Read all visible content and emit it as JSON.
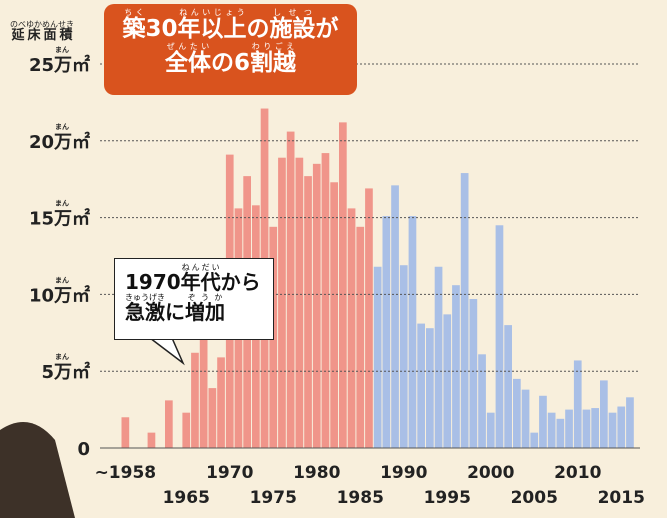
{
  "chart_data": {
    "type": "bar",
    "title_lines": [
      [
        {
          "text": "築",
          "ruby": "ちく"
        },
        {
          "text": "30"
        },
        {
          "text": "年",
          "ruby": "ねん"
        },
        {
          "text": "以上",
          "ruby": "いじょう"
        },
        {
          "text": "の"
        },
        {
          "text": "施設",
          "ruby": "しせつ"
        },
        {
          "text": "が"
        }
      ],
      [
        {
          "text": "全体",
          "ruby": "ぜんたい"
        },
        {
          "text": "の6"
        },
        {
          "text": "割越",
          "ruby": "わりごえ"
        }
      ]
    ],
    "y_label": {
      "text": "延床面積",
      "ruby": "のべゆかめんせき"
    },
    "annotation_lines": [
      [
        {
          "text": "1970"
        },
        {
          "text": "年代",
          "ruby": "ねんだい"
        },
        {
          "text": "から"
        }
      ],
      [
        {
          "text": "急激",
          "ruby": "きゅうげき"
        },
        {
          "text": "に"
        },
        {
          "text": "増加",
          "ruby": "ぞうか"
        }
      ]
    ],
    "categories": [
      "~1958",
      null,
      null,
      null,
      null,
      null,
      null,
      "1965",
      null,
      null,
      null,
      null,
      "1970",
      null,
      null,
      null,
      null,
      "1975",
      null,
      null,
      null,
      null,
      "1980",
      null,
      null,
      null,
      null,
      "1985",
      null,
      null,
      null,
      null,
      "1990",
      null,
      null,
      null,
      null,
      "1995",
      null,
      null,
      null,
      null,
      "2000",
      null,
      null,
      null,
      null,
      "2005",
      null,
      null,
      null,
      null,
      "2010",
      null,
      null,
      null,
      null,
      "2015",
      null
    ],
    "values": [
      2.0,
      0,
      0,
      1.0,
      0,
      3.1,
      0,
      2.3,
      6.2,
      7.2,
      3.9,
      5.9,
      19.1,
      15.6,
      17.7,
      15.8,
      22.1,
      14.4,
      18.9,
      20.6,
      18.9,
      17.7,
      18.5,
      19.2,
      17.3,
      21.2,
      15.6,
      14.4,
      16.9,
      11.8,
      15.1,
      17.1,
      11.9,
      15.1,
      8.1,
      7.8,
      11.8,
      8.7,
      10.6,
      17.9,
      9.7,
      6.1,
      2.3,
      14.5,
      8.0,
      4.5,
      3.8,
      1.0,
      3.4,
      2.3,
      1.9,
      2.5,
      5.7,
      2.5,
      2.6,
      4.4,
      2.3,
      2.7,
      3.3
    ],
    "colors": [
      "#f0958a",
      "#f0958a",
      "#f0958a",
      "#f0958a",
      "#f0958a",
      "#f0958a",
      "#f0958a",
      "#f0958a",
      "#f0958a",
      "#f0958a",
      "#f0958a",
      "#f0958a",
      "#f0958a",
      "#f0958a",
      "#f0958a",
      "#f0958a",
      "#f0958a",
      "#f0958a",
      "#f0958a",
      "#f0958a",
      "#f0958a",
      "#f0958a",
      "#f0958a",
      "#f0958a",
      "#f0958a",
      "#f0958a",
      "#f0958a",
      "#f0958a",
      "#f0958a",
      "#a9bfe6",
      "#a9bfe6",
      "#a9bfe6",
      "#a9bfe6",
      "#a9bfe6",
      "#a9bfe6",
      "#a9bfe6",
      "#a9bfe6",
      "#a9bfe6",
      "#a9bfe6",
      "#a9bfe6",
      "#a9bfe6",
      "#a9bfe6",
      "#a9bfe6",
      "#a9bfe6",
      "#a9bfe6",
      "#a9bfe6",
      "#a9bfe6",
      "#a9bfe6",
      "#a9bfe6",
      "#a9bfe6",
      "#a9bfe6",
      "#a9bfe6",
      "#a9bfe6",
      "#a9bfe6",
      "#a9bfe6",
      "#a9bfe6",
      "#a9bfe6",
      "#a9bfe6",
      "#a9bfe6"
    ],
    "ylim": [
      0,
      25
    ],
    "yticks": [
      0,
      {
        "value": 5,
        "label": "5万㎡",
        "ruby": "まん"
      },
      {
        "value": 10,
        "label": "10万㎡",
        "ruby": "まん"
      },
      {
        "value": 15,
        "label": "15万㎡",
        "ruby": "まん"
      },
      {
        "value": 20,
        "label": "20万㎡",
        "ruby": "まん"
      },
      {
        "value": 25,
        "label": "25万㎡",
        "ruby": "まん"
      }
    ],
    "grid": true
  }
}
